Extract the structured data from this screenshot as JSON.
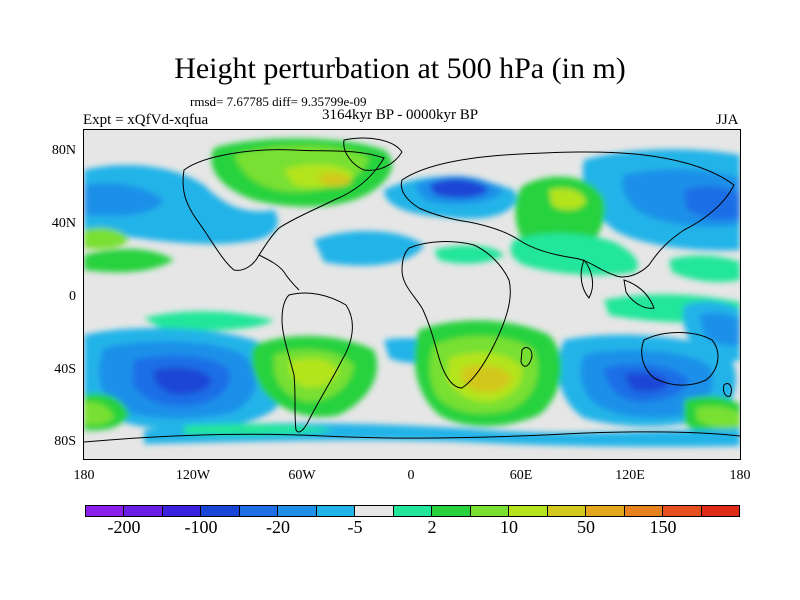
{
  "title": "Height perturbation at 500 hPa (in m)",
  "stats": "rmsd= 7.67785 diff= 9.35799e-09",
  "period": "3164kyr BP - 0000kyr BP",
  "experiment": "Expt = xQfVd-xqfua",
  "season": "JJA",
  "map": {
    "lat_labels": [
      "80N",
      "40N",
      "0",
      "40S",
      "80S"
    ],
    "lon_labels": [
      "180",
      "120W",
      "60W",
      "0",
      "60E",
      "120E",
      "180"
    ]
  },
  "colorbar": {
    "colors": [
      "#8c1eea",
      "#6a1ee6",
      "#3b22de",
      "#1a46d6",
      "#1e6ee6",
      "#1f90e9",
      "#22b4e8",
      "#e6e6e6",
      "#22e69a",
      "#28d23c",
      "#78e032",
      "#b4e41e",
      "#d2c81e",
      "#e6a61e",
      "#e6821e",
      "#e6501e",
      "#e02a18"
    ],
    "labels": [
      "-200",
      "-100",
      "-20",
      "-5",
      "2",
      "10",
      "50",
      "150"
    ]
  }
}
